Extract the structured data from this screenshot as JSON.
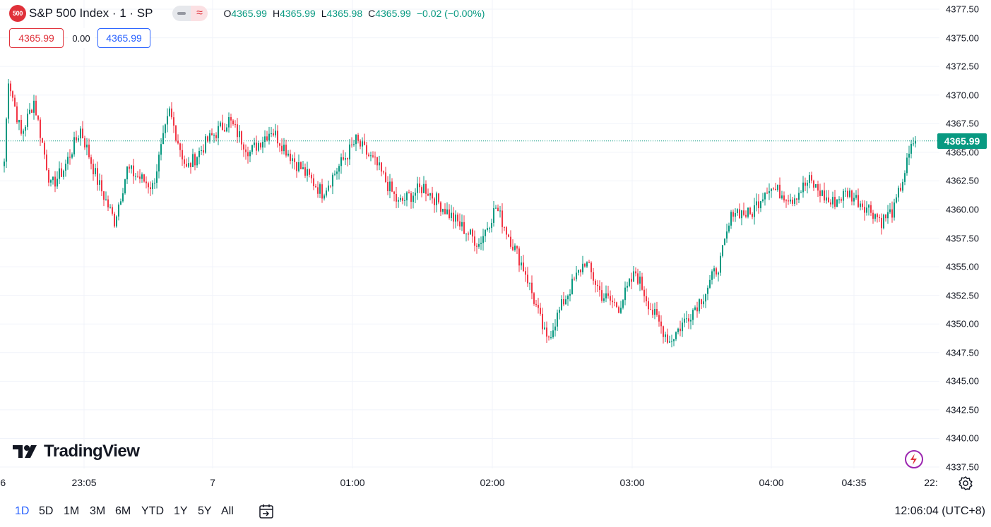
{
  "symbol": {
    "logo_text": "500",
    "title": "S&P 500 Index · 1 · SP"
  },
  "ohlc": {
    "open_label": "O",
    "open": "4365.99",
    "high_label": "H",
    "high": "4365.99",
    "low_label": "L",
    "low": "4365.98",
    "close_label": "C",
    "close": "4365.99",
    "change": "−0.02 (−0.00%)"
  },
  "quote": {
    "sell": "4365.99",
    "spread": "0.00",
    "buy": "4365.99"
  },
  "last_price_label": "4365.99",
  "brand": {
    "name": "TradingView"
  },
  "ranges": [
    "1D",
    "5D",
    "1M",
    "3M",
    "6M",
    "YTD",
    "1Y",
    "5Y",
    "All"
  ],
  "active_range": "1D",
  "clock": "12:06:04 (UTC+8)",
  "colors": {
    "up": "#089981",
    "down": "#f23645",
    "grid": "#f0f3fa",
    "last_line": "#089981"
  },
  "icons": [
    "toggle-icon",
    "wave-icon",
    "calendar-goto-icon",
    "lightning-icon",
    "settings-icon"
  ],
  "chart_data": {
    "type": "candlestick",
    "y_ticks": [
      "4377.50",
      "4375.00",
      "4372.50",
      "4370.00",
      "4367.50",
      "4365.00",
      "4362.50",
      "4360.00",
      "4357.50",
      "4355.00",
      "4352.50",
      "4350.00",
      "4347.50",
      "4345.00",
      "4342.50",
      "4340.00",
      "4337.50"
    ],
    "ylim": [
      4337.5,
      4377.5
    ],
    "x_ticks": [
      "6",
      "23:05",
      "7",
      "01:00",
      "02:00",
      "03:00",
      "04:00",
      "04:35",
      "22:"
    ],
    "last_price": 4365.99,
    "waypoints": [
      [
        0,
        4364.2
      ],
      [
        2,
        4371.5
      ],
      [
        8,
        4366.5
      ],
      [
        14,
        4369.5
      ],
      [
        22,
        4362.0
      ],
      [
        28,
        4363.5
      ],
      [
        36,
        4367.0
      ],
      [
        44,
        4362.5
      ],
      [
        52,
        4359.0
      ],
      [
        58,
        4363.5
      ],
      [
        70,
        4362.0
      ],
      [
        78,
        4368.5
      ],
      [
        86,
        4363.5
      ],
      [
        96,
        4366.0
      ],
      [
        106,
        4367.8
      ],
      [
        116,
        4365.0
      ],
      [
        126,
        4367.0
      ],
      [
        138,
        4364.0
      ],
      [
        150,
        4361.5
      ],
      [
        166,
        4366.0
      ],
      [
        176,
        4363.8
      ],
      [
        186,
        4360.5
      ],
      [
        198,
        4362.0
      ],
      [
        212,
        4359.2
      ],
      [
        224,
        4357.0
      ],
      [
        232,
        4360.2
      ],
      [
        246,
        4354.5
      ],
      [
        256,
        4348.5
      ],
      [
        264,
        4352.0
      ],
      [
        274,
        4355.5
      ],
      [
        282,
        4352.5
      ],
      [
        290,
        4351.5
      ],
      [
        298,
        4354.5
      ],
      [
        306,
        4351.0
      ],
      [
        314,
        4348.5
      ],
      [
        324,
        4351.0
      ],
      [
        330,
        4352.5
      ],
      [
        338,
        4355.5
      ],
      [
        344,
        4360.0
      ],
      [
        352,
        4359.5
      ],
      [
        360,
        4362.0
      ],
      [
        372,
        4361.0
      ],
      [
        380,
        4362.5
      ],
      [
        390,
        4360.5
      ],
      [
        398,
        4361.5
      ],
      [
        410,
        4359.8
      ],
      [
        414,
        4359.0
      ],
      [
        420,
        4360.0
      ],
      [
        426,
        4364.0
      ],
      [
        430,
        4366.5
      ]
    ]
  }
}
